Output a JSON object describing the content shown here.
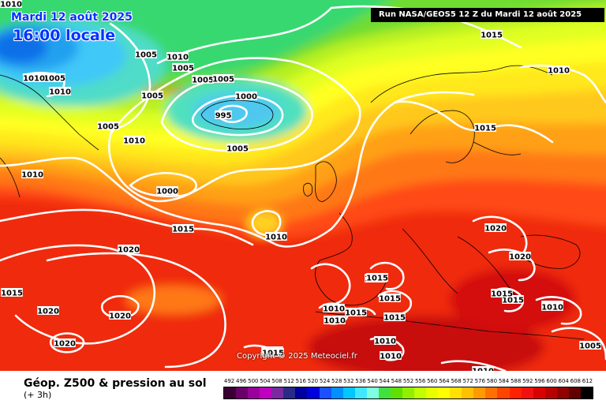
{
  "title": {
    "date": "Mardi 12 août 2025",
    "time": "16:00 locale"
  },
  "run_banner": "Run NASA/GEOS5 12 Z du Mardi 12 août 2025",
  "copyright": "Copyright © 2025 Meteociel.fr",
  "footer": {
    "title": "Géop. Z500 & pression au sol",
    "subtitle": "(+ 3h)"
  },
  "scale": {
    "labels": [
      "492",
      "496",
      "500",
      "504",
      "508",
      "512",
      "516",
      "520",
      "524",
      "528",
      "532",
      "536",
      "540",
      "544",
      "548",
      "552",
      "556",
      "560",
      "564",
      "568",
      "572",
      "576",
      "580",
      "584",
      "588",
      "592",
      "596",
      "600",
      "604",
      "608",
      "612"
    ],
    "colors": [
      "#3a0033",
      "#6a006a",
      "#9a009a",
      "#c000c0",
      "#7a2aa0",
      "#2a2a88",
      "#0000a0",
      "#0000dd",
      "#1a50ff",
      "#0090ff",
      "#00c8ff",
      "#40e8ff",
      "#80ffe0",
      "#40e040",
      "#60e000",
      "#90f000",
      "#c0ff00",
      "#e8ff00",
      "#ffff00",
      "#ffe000",
      "#ffc000",
      "#ff9a00",
      "#ff7000",
      "#ff4400",
      "#ff2200",
      "#f01010",
      "#d80000",
      "#b80000",
      "#900000",
      "#600000",
      "#000000"
    ]
  },
  "isobars": [
    {
      "value": "1010"
    },
    {
      "value": "1005"
    },
    {
      "value": "1010"
    },
    {
      "value": "1010"
    },
    {
      "value": "1010"
    },
    {
      "value": "1005"
    },
    {
      "value": "1005"
    },
    {
      "value": "1005"
    },
    {
      "value": "1005"
    },
    {
      "value": "1005"
    },
    {
      "value": "1000"
    },
    {
      "value": "995"
    },
    {
      "value": "1005"
    },
    {
      "value": "1005"
    },
    {
      "value": "1010"
    },
    {
      "value": "1010"
    },
    {
      "value": "1000"
    },
    {
      "value": "1015"
    },
    {
      "value": "1010"
    },
    {
      "value": "1015"
    },
    {
      "value": "1020"
    },
    {
      "value": "1015"
    },
    {
      "value": "1020"
    },
    {
      "value": "1020"
    },
    {
      "value": "1020"
    },
    {
      "value": "1015"
    },
    {
      "value": "1015"
    },
    {
      "value": "1015"
    },
    {
      "value": "1010"
    },
    {
      "value": "1015"
    },
    {
      "value": "1010"
    },
    {
      "value": "1015"
    },
    {
      "value": "1010"
    },
    {
      "value": "1010"
    },
    {
      "value": "1015"
    },
    {
      "value": "1010"
    },
    {
      "value": "1010"
    },
    {
      "value": "1020"
    },
    {
      "value": "1020"
    },
    {
      "value": "1015"
    },
    {
      "value": "1015"
    },
    {
      "value": "1010"
    },
    {
      "value": "1005"
    },
    {
      "value": "1010"
    },
    {
      "value": "1015"
    },
    {
      "value": "1010"
    },
    {
      "value": "1015"
    }
  ]
}
